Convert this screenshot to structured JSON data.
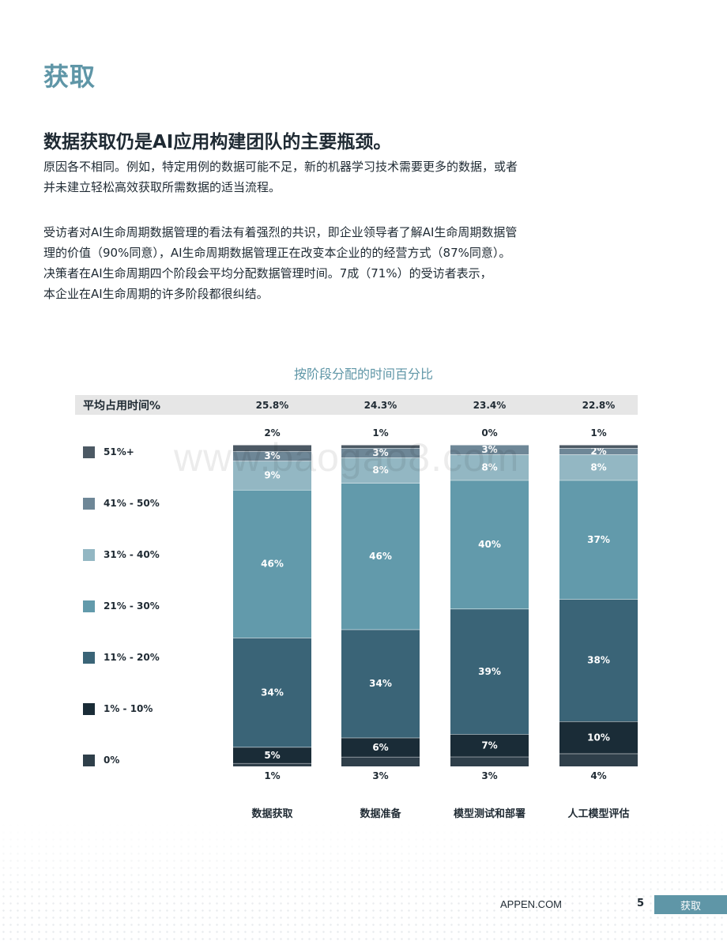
{
  "page": {
    "section_title": "获取",
    "headline": "数据获取仍是AI应用构建团队的主要瓶颈。",
    "paragraphs": [
      [
        "原因各不相同。例如，特定用例的数据可能不足，新的机器学习技术需要更多的数据，或者",
        "并未建立轻松高效获取所需数据的适当流程。"
      ],
      [
        "受访者对AI生命周期数据管理的看法有着强烈的共识，即企业领导者了解AI生命周期数据管",
        "理的价值（90%同意），AI生命周期数据管理正在改变本企业的的经营方式（87%同意）。",
        "决策者在AI生命周期四个阶段会平均分配数据管理时间。7成（71%）的受访者表示，",
        "本企业在AI生命周期的许多阶段都很纠结。"
      ]
    ],
    "watermark": "www.baogao8.com",
    "footer": {
      "site": "APPEN.COM",
      "page_number": "5",
      "tab_label": "获取"
    }
  },
  "chart_data": {
    "type": "bar",
    "stacked": true,
    "title": "按阶段分配的时间百分比",
    "categories": [
      "数据获取",
      "数据准备",
      "模型测试和部署",
      "人工模型评估"
    ],
    "avg_row_label": "平均占用时间%",
    "avg_values": [
      "25.8%",
      "24.3%",
      "23.4%",
      "22.8%"
    ],
    "series": [
      {
        "name": "0%",
        "color": "#2f3f4a",
        "values": [
          1,
          3,
          3,
          4
        ]
      },
      {
        "name": "1% - 10%",
        "color": "#1a2c37",
        "values": [
          5,
          6,
          7,
          10
        ]
      },
      {
        "name": "11% - 20%",
        "color": "#3a6477",
        "values": [
          34,
          34,
          39,
          38
        ]
      },
      {
        "name": "21% - 30%",
        "color": "#629aab",
        "values": [
          46,
          46,
          40,
          37
        ]
      },
      {
        "name": "31% - 40%",
        "color": "#93b7c3",
        "values": [
          9,
          8,
          8,
          8
        ]
      },
      {
        "name": "41% - 50%",
        "color": "#6e8797",
        "values": [
          3,
          3,
          3,
          2
        ]
      },
      {
        "name": "51%+",
        "color": "#4c5964",
        "values": [
          2,
          1,
          0,
          1
        ]
      }
    ],
    "legend_order": [
      "51%+",
      "41% - 50%",
      "31% - 40%",
      "21% - 30%",
      "11% - 20%",
      "1% - 10%",
      "0%"
    ],
    "legend_position": "left",
    "top_series": "51%+",
    "bottom_series": "0%"
  }
}
